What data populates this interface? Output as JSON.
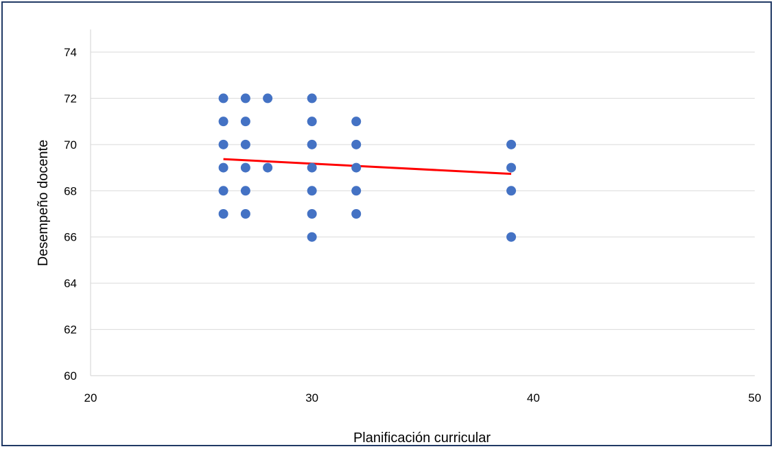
{
  "chart_data": {
    "type": "scatter",
    "title": "",
    "xlabel": "Planificación curricular",
    "ylabel": "Desempeño docente",
    "xlim": [
      20,
      50
    ],
    "ylim": [
      60,
      74
    ],
    "x_ticks": [
      20,
      30,
      40,
      50
    ],
    "y_ticks": [
      60,
      62,
      64,
      66,
      68,
      70,
      72,
      74
    ],
    "grid": "horizontal",
    "legend": "none",
    "colors": {
      "points": "#4472c4",
      "trendline": "#ff0000",
      "grid": "#d9d9d9",
      "frame": "#1f3864"
    },
    "series": [
      {
        "points": [
          [
            26,
            72
          ],
          [
            27,
            72
          ],
          [
            28,
            72
          ],
          [
            30,
            72
          ],
          [
            26,
            71
          ],
          [
            27,
            71
          ],
          [
            30,
            71
          ],
          [
            32,
            71
          ],
          [
            26,
            70
          ],
          [
            27,
            70
          ],
          [
            30,
            70
          ],
          [
            32,
            70
          ],
          [
            39,
            70
          ],
          [
            26,
            69
          ],
          [
            27,
            69
          ],
          [
            28,
            69
          ],
          [
            30,
            69
          ],
          [
            32,
            69
          ],
          [
            39,
            69
          ],
          [
            26,
            68
          ],
          [
            27,
            68
          ],
          [
            30,
            68
          ],
          [
            32,
            68
          ],
          [
            39,
            68
          ],
          [
            26,
            67
          ],
          [
            27,
            67
          ],
          [
            30,
            67
          ],
          [
            32,
            67
          ],
          [
            30,
            66
          ],
          [
            39,
            66
          ]
        ]
      }
    ],
    "trendline": {
      "x": [
        26,
        39
      ],
      "y": [
        69.37,
        68.73
      ]
    }
  }
}
